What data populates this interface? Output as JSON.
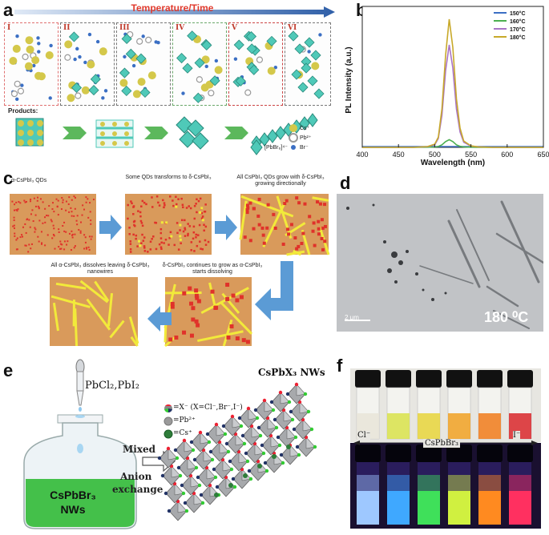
{
  "panel_labels": {
    "a": "a",
    "b": "b",
    "c": "c",
    "d": "d",
    "e": "e",
    "f": "f"
  },
  "panel_a": {
    "arrow_label": "Temperature/Time",
    "stages": [
      "I",
      "II",
      "III",
      "IV",
      "V",
      "VI"
    ],
    "products_label": "Products:",
    "legend": {
      "cs": "Cs⁺",
      "pb": "Pb²⁺",
      "br": "Br⁻",
      "octa": "[PbBr₆]⁴⁻"
    },
    "colors": {
      "cs": "#d4c84a",
      "pb": "#a9a9a9",
      "br": "#3b6fc4",
      "octa": "#4fc9b8",
      "arrow": "#5cb85c",
      "bar": "#3a6db5"
    }
  },
  "chart_data": {
    "type": "line",
    "title": "",
    "xlabel": "Wavelength (nm)",
    "ylabel": "PL Intensity (a.u.)",
    "xlim": [
      400,
      650
    ],
    "xticks": [
      400,
      450,
      500,
      550,
      600,
      650
    ],
    "x": [
      400,
      440,
      470,
      490,
      500,
      505,
      510,
      515,
      520,
      525,
      530,
      535,
      540,
      550,
      560,
      580,
      600,
      650
    ],
    "series": [
      {
        "name": "150°C",
        "color": "#3b6fc4",
        "values": [
          0,
          0,
          0,
          0,
          0,
          0,
          0,
          0,
          0,
          0,
          0,
          0,
          0,
          0,
          0,
          0,
          0,
          0
        ]
      },
      {
        "name": "160°C",
        "color": "#4caf50",
        "values": [
          0,
          0,
          0,
          0.1,
          0.3,
          0.7,
          2,
          4.5,
          6,
          4.5,
          2,
          0.8,
          0.3,
          0.1,
          0,
          0,
          0,
          0
        ]
      },
      {
        "name": "170°C",
        "color": "#a974c6",
        "values": [
          0,
          0,
          0,
          0.5,
          2,
          7,
          25,
          60,
          80,
          62,
          30,
          12,
          4,
          1,
          0.3,
          0,
          0,
          0
        ]
      },
      {
        "name": "180°C",
        "color": "#c8a92a",
        "values": [
          0,
          0,
          0,
          0.6,
          2.5,
          8,
          30,
          72,
          100,
          78,
          38,
          15,
          5,
          1.2,
          0.4,
          0,
          0,
          0
        ]
      }
    ],
    "ylim": [
      0,
      110
    ]
  },
  "panel_c": {
    "captions": [
      "α-CsPbI₃ QDs",
      "Some QDs transforms to δ-CsPbI₃",
      "All CsPbI₃ QDs grow with δ-CsPbI₃ growing directionally",
      "All α-CsPbI₃ dissolves leaving δ-CsPbI₃ nanowires",
      "δ-CsPbI₃ continues to grow as α-CsPbI₃ starts dissolving"
    ],
    "colors": {
      "bg": "#d99a5b",
      "dot": "#e0322a",
      "wire": "#f2ea3a",
      "arrow": "#5b9bd5"
    }
  },
  "panel_d": {
    "scale": "2 μm",
    "temp": "180 ⁰C"
  },
  "panel_e": {
    "title": "CsPbX₃ NWs",
    "precursor": "PbCl₂,PbI₂",
    "legend_x": "=X⁻ (X=Cl⁻,Br⁻,I⁻)",
    "legend_pb": "=Pb²⁺",
    "legend_cs": "=Cs⁺",
    "step1": "Mixed",
    "step2": "Anion",
    "step3": "exchange",
    "bottle_line1": "CsPbBr₃",
    "bottle_line2": "NWs"
  },
  "panel_f": {
    "left": "Cl⁻",
    "mid": "CsPbBr₃",
    "right": "I⁻",
    "vial_colors": [
      "#e8e4d8",
      "#d8e24a",
      "#e6d43a",
      "#f0a022",
      "#f07a1a",
      "#d8262a"
    ],
    "glow_colors": [
      "#9ec8ff",
      "#3fa8ff",
      "#3fe05a",
      "#d0f040",
      "#ff8a20",
      "#ff3060"
    ]
  }
}
